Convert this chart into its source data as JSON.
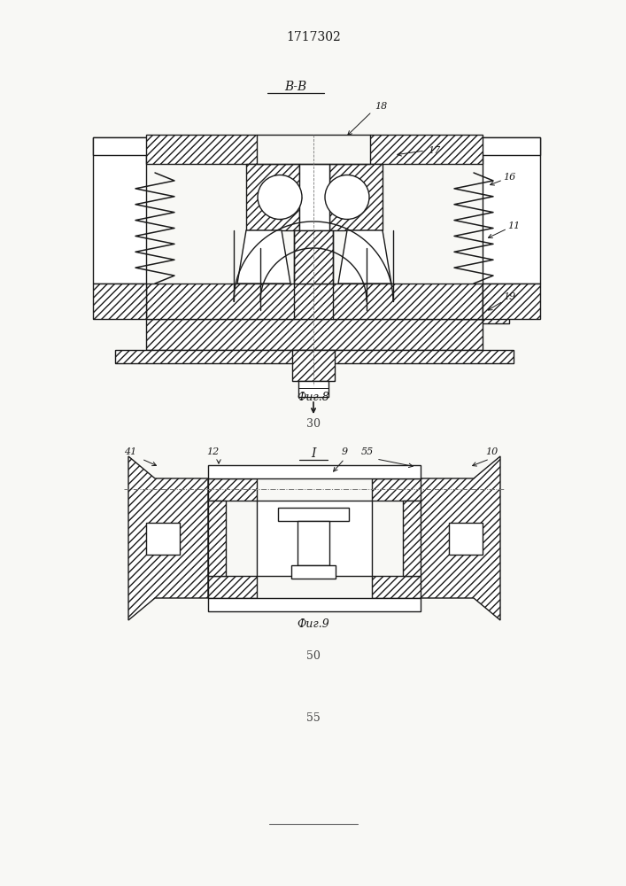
{
  "title": "1717302",
  "bg_color": "#f8f8f5",
  "line_color": "#1a1a1a",
  "fig8_label": "Фиг.8",
  "fig9_label": "Фиг.9",
  "section_label_8": "В-В",
  "section_label_9": "I",
  "page_num_30": "30",
  "page_num_50": "50",
  "page_num_55": "55"
}
